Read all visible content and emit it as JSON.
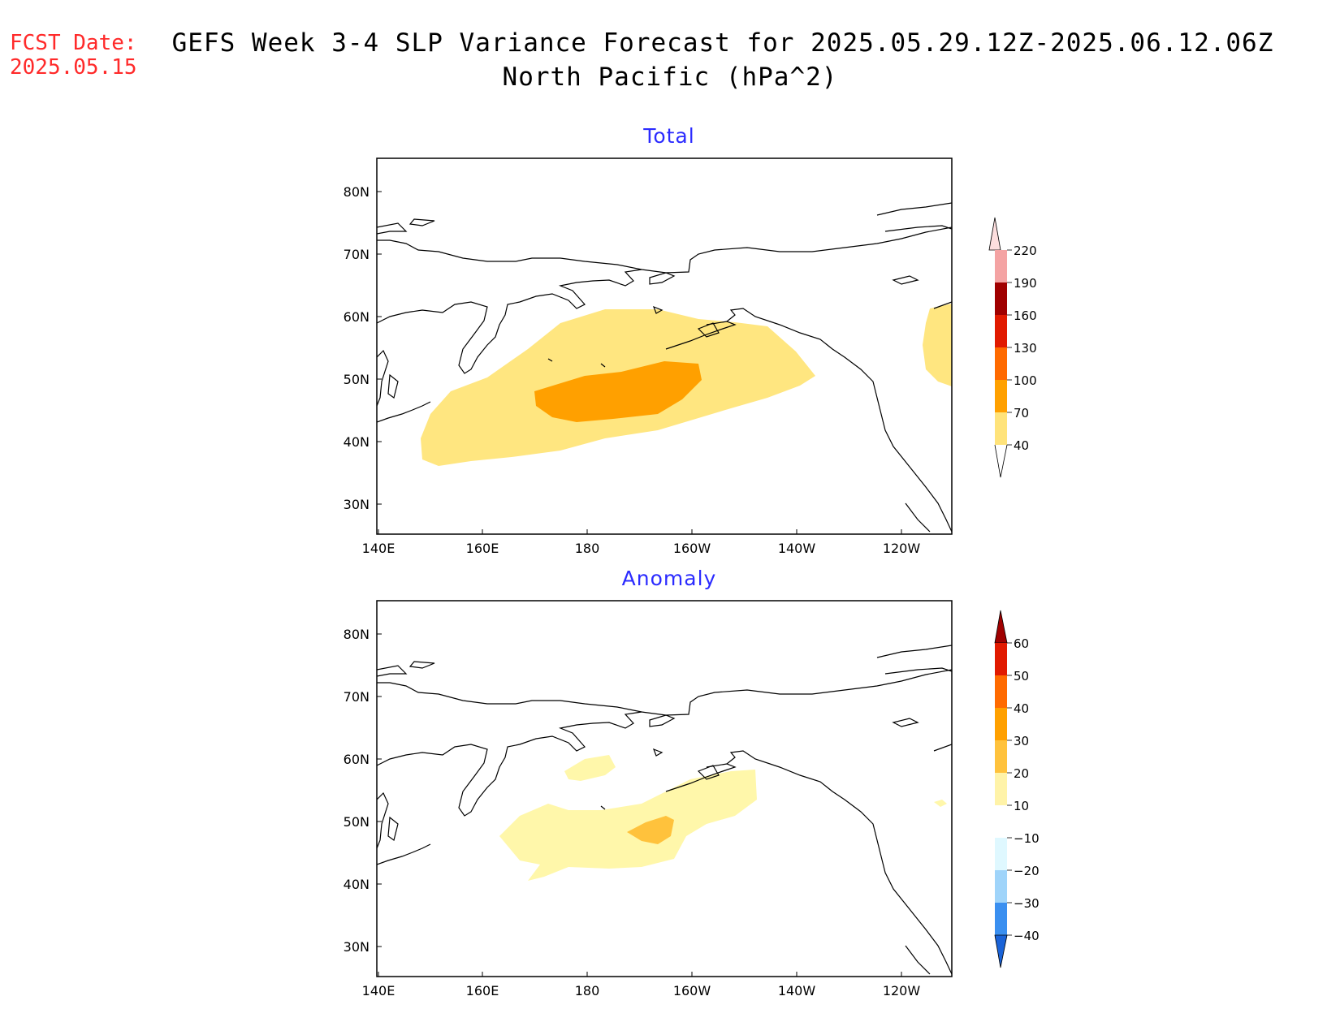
{
  "header": {
    "fcst_label": "FCST Date:",
    "fcst_date": "2025.05.15",
    "title_line1": "GEFS Week 3-4 SLP Variance Forecast for 2025.05.29.12Z-2025.06.12.06Z",
    "title_line2": "North Pacific (hPa^2)"
  },
  "axes": {
    "lat_labels": [
      "80N",
      "70N",
      "60N",
      "50N",
      "40N",
      "30N"
    ],
    "lon_labels": [
      "140E",
      "160E",
      "180",
      "160W",
      "140W",
      "120W"
    ]
  },
  "panels": [
    {
      "title": "Total",
      "colorbar": {
        "labels": [
          "220",
          "190",
          "160",
          "130",
          "100",
          "70",
          "40"
        ],
        "colors": [
          "#fcdede",
          "#f4a3a3",
          "#a00000",
          "#e11a00",
          "#ff6a00",
          "#ffa000",
          "#ffe37a"
        ]
      }
    },
    {
      "title": "Anomaly",
      "colorbar": {
        "labels": [
          "60",
          "50",
          "40",
          "30",
          "20",
          "10",
          "−10",
          "−20",
          "−30",
          "−40"
        ],
        "colors": [
          "#a00000",
          "#e11a00",
          "#ff6a00",
          "#ffa000",
          "#ffc23c",
          "#fff3a8",
          "#ffffff",
          "#dff8ff",
          "#9fd4fa",
          "#3a8ff0",
          "#1a63d8"
        ]
      }
    }
  ],
  "field_colors": {
    "total_40_70": "#ffe680",
    "total_70_100": "#ffa000",
    "anom_10_20": "#fff7aa",
    "anom_20_30": "#ffc23c"
  }
}
